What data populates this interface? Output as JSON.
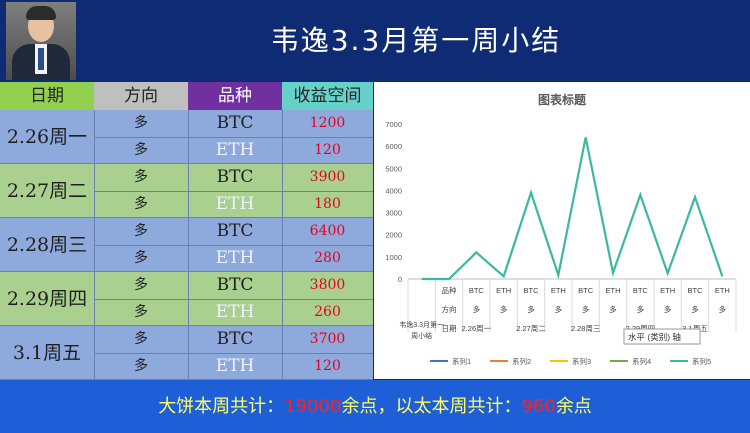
{
  "header": {
    "title": "韦逸3.3月第一周小结"
  },
  "table": {
    "headers": [
      "日期",
      "方向",
      "品种",
      "收益空间"
    ],
    "rows": [
      {
        "date": "2.26周一",
        "items": [
          {
            "dir": "多",
            "kind": "BTC",
            "val": "1200"
          },
          {
            "dir": "多",
            "kind": "ETH",
            "val": "120"
          }
        ]
      },
      {
        "date": "2.27周二",
        "items": [
          {
            "dir": "多",
            "kind": "BTC",
            "val": "3900"
          },
          {
            "dir": "多",
            "kind": "ETH",
            "val": "180"
          }
        ]
      },
      {
        "date": "2.28周三",
        "items": [
          {
            "dir": "多",
            "kind": "BTC",
            "val": "6400"
          },
          {
            "dir": "多",
            "kind": "ETH",
            "val": "280"
          }
        ]
      },
      {
        "date": "2.29周四",
        "items": [
          {
            "dir": "多",
            "kind": "BTC",
            "val": "3800"
          },
          {
            "dir": "多",
            "kind": "ETH",
            "val": "260"
          }
        ]
      },
      {
        "date": "3.1周五",
        "items": [
          {
            "dir": "多",
            "kind": "BTC",
            "val": "3700"
          },
          {
            "dir": "多",
            "kind": "ETH",
            "val": "120"
          }
        ]
      }
    ]
  },
  "chart_data": {
    "type": "line",
    "title": "图表标题",
    "ylim": [
      0,
      7000
    ],
    "yticks": [
      "0",
      "1000",
      "2000",
      "3000",
      "4000",
      "5000",
      "6000",
      "7000"
    ],
    "x_labels": [
      [
        "韦逸3.3月第一",
        "周小结"
      ],
      [
        "品种",
        "方向",
        "日期"
      ],
      [
        "BTC",
        "多",
        "2.26周一"
      ],
      [
        "ETH",
        "多",
        ""
      ],
      [
        "BTC",
        "多",
        "2.27周二"
      ],
      [
        "ETH",
        "多",
        ""
      ],
      [
        "BTC",
        "多",
        "2.28周三"
      ],
      [
        "ETH",
        "多",
        ""
      ],
      [
        "BTC",
        "多",
        "2.29周四"
      ],
      [
        "ETH",
        "多",
        ""
      ],
      [
        "BTC",
        "多",
        "3.1周五"
      ],
      [
        "ETH",
        "多",
        ""
      ]
    ],
    "series": [
      {
        "name": "系列1",
        "color": "#4472c4",
        "values": []
      },
      {
        "name": "系列2",
        "color": "#ed7d31",
        "values": []
      },
      {
        "name": "系列3",
        "color": "#ffc000",
        "values": []
      },
      {
        "name": "系列4",
        "color": "#70ad47",
        "values": []
      },
      {
        "name": "系列5",
        "color": "#3bb8a0",
        "values": [
          0,
          0,
          1200,
          120,
          3900,
          180,
          6400,
          280,
          3800,
          260,
          3700,
          120
        ]
      }
    ],
    "tooltip": "水平 (类别) 轴",
    "legend_position": "bottom",
    "grid": false
  },
  "footer": {
    "prefix": "大饼本周共计：",
    "btc_total": "19000",
    "mid": "余点，以太本周共计：",
    "eth_total": "960",
    "suffix": "余点"
  }
}
